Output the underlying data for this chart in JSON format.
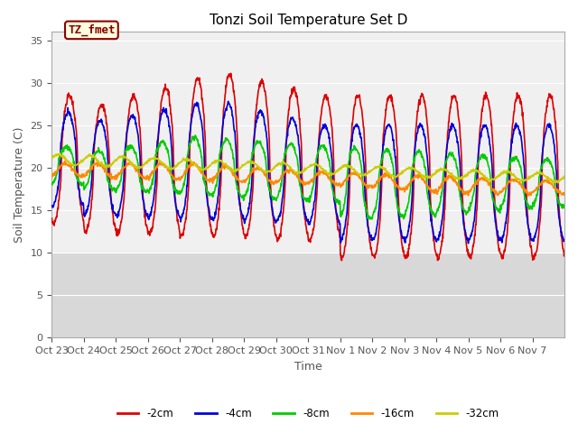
{
  "title": "Tonzi Soil Temperature Set D",
  "xlabel": "Time",
  "ylabel": "Soil Temperature (C)",
  "ylim": [
    0,
    36
  ],
  "yticks": [
    0,
    5,
    10,
    15,
    20,
    25,
    30,
    35
  ],
  "legend_label": "TZ_fmet",
  "series_labels": [
    "-2cm",
    "-4cm",
    "-8cm",
    "-16cm",
    "-32cm"
  ],
  "series_colors": [
    "#dd0000",
    "#0000dd",
    "#00cc00",
    "#ff8800",
    "#cccc00"
  ],
  "x_tick_labels": [
    "Oct 23",
    "Oct 24",
    "Oct 25",
    "Oct 26",
    "Oct 27",
    "Oct 28",
    "Oct 29",
    "Oct 30",
    "Oct 31",
    "Nov 1",
    "Nov 2",
    "Nov 3",
    "Nov 4",
    "Nov 5",
    "Nov 6",
    "Nov 7"
  ],
  "n_days": 16,
  "points_per_day": 96,
  "bg_light": "#f0f0f0",
  "bg_dark": "#d8d8d8",
  "grid_color": "#e8e8e8"
}
